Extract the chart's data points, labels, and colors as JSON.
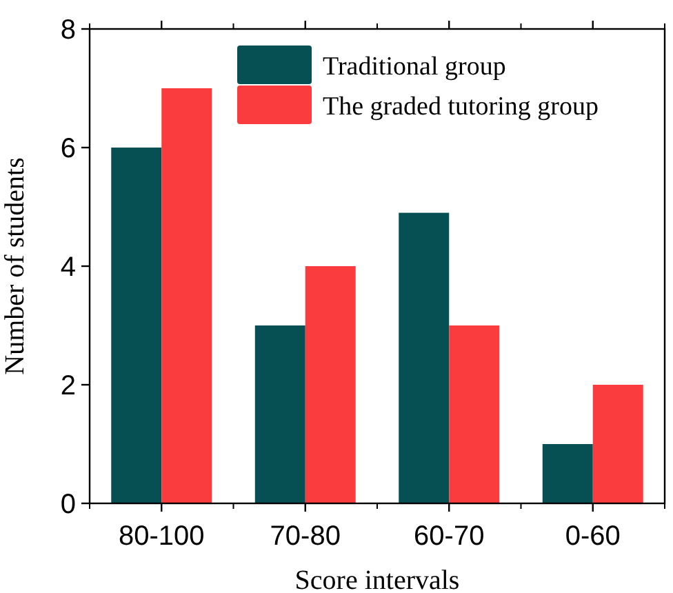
{
  "chart_data": {
    "type": "bar",
    "xlabel": "Score intervals",
    "ylabel": "Number of students",
    "categories": [
      "80-100",
      "70-80",
      "60-70",
      "0-60"
    ],
    "series": [
      {
        "name": "Traditional group",
        "color": "#064f52",
        "values": [
          6,
          3,
          4.9,
          1
        ]
      },
      {
        "name": "The graded tutoring group",
        "color": "#fa3c3e",
        "values": [
          7,
          4,
          3,
          2
        ]
      }
    ],
    "ylim": [
      0,
      8
    ],
    "yticks": [
      0,
      2,
      4,
      6,
      8
    ],
    "grid": false,
    "legend": "top right"
  }
}
